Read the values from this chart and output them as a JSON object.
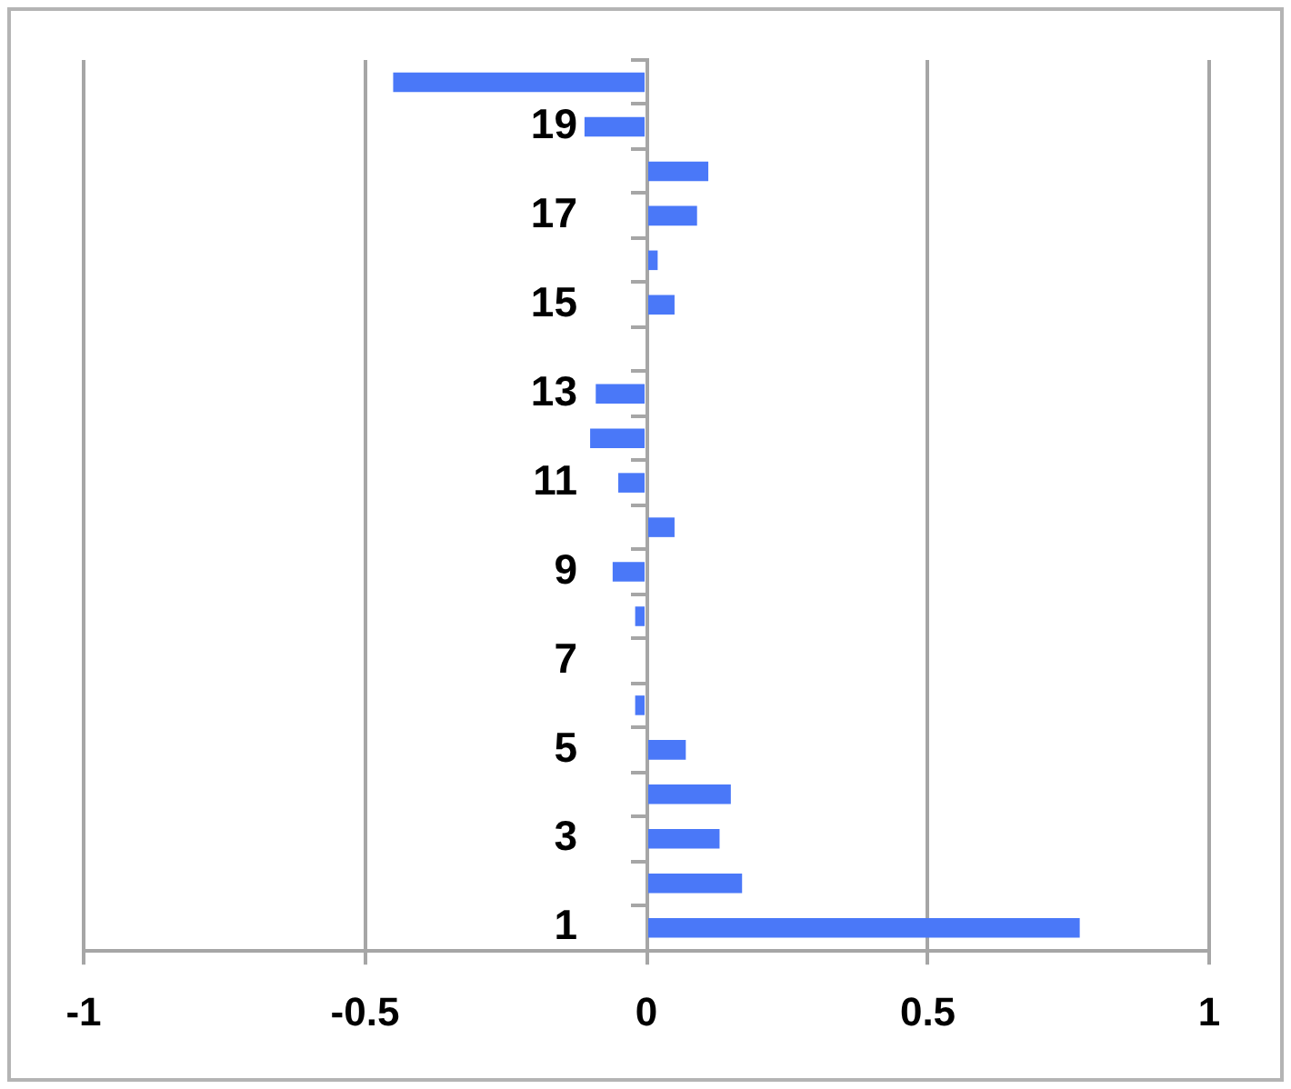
{
  "chart_data": {
    "type": "bar",
    "orientation": "horizontal",
    "categories": [
      null,
      "19",
      null,
      "17",
      null,
      "15",
      null,
      "13",
      null,
      "11",
      null,
      "9",
      null,
      "7",
      null,
      "5",
      null,
      "3",
      null,
      "1"
    ],
    "values": [
      -0.45,
      -0.11,
      0.11,
      0.09,
      0.02,
      0.05,
      0,
      -0.09,
      -0.1,
      -0.05,
      0.05,
      -0.06,
      -0.02,
      0,
      -0.02,
      0.07,
      0.15,
      0.13,
      0.17,
      0.77
    ],
    "color": "#4a78f8",
    "xlim": [
      -1,
      1
    ],
    "xticks": [
      -1,
      -0.5,
      0,
      0.5,
      1
    ],
    "grid": "x"
  }
}
